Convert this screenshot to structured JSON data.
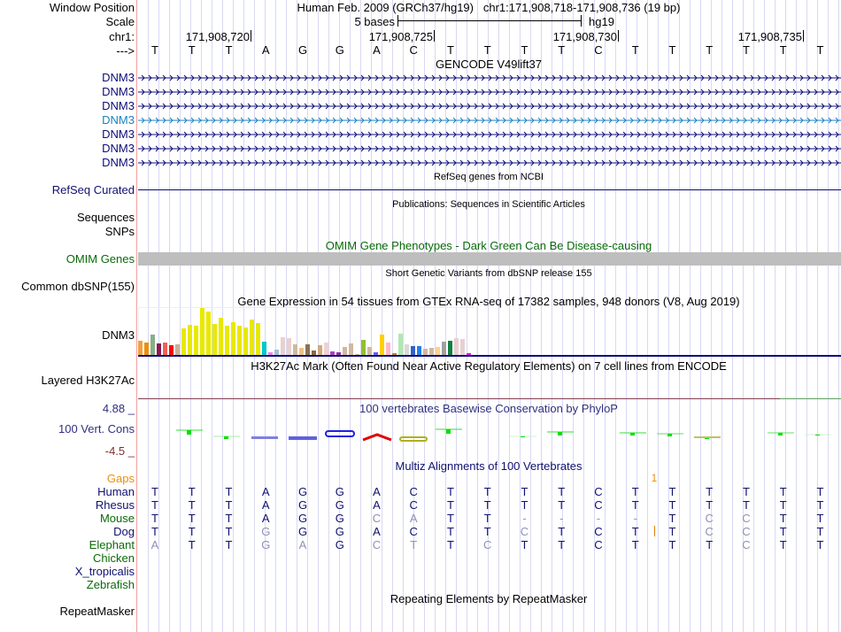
{
  "labels": {
    "window_position": "Window Position",
    "scale": "Scale",
    "chrom": "chr1:",
    "strand": "--->",
    "refseq": "RefSeq Curated",
    "sequences": "Sequences",
    "snps": "SNPs",
    "omim": "OMIM Genes",
    "dbsnp": "Common dbSNP(155)",
    "gtex_gene": "DNM3",
    "h3k27ac": "Layered H3K27Ac",
    "cons_max": "4.88 _",
    "cons_name": "100 Vert. Cons",
    "cons_min": "-4.5 _",
    "gaps": "Gaps",
    "repeatmasker": "RepeatMasker"
  },
  "header": {
    "assembly": "Human Feb. 2009 (GRCh37/hg19)",
    "position": "chr1:171,908,718-171,908,736 (19 bp)",
    "scale_label": "5 bases",
    "scale_db": "hg19",
    "ticks": [
      "171,908,720",
      "171,908,725",
      "171,908,730",
      "171,908,735"
    ]
  },
  "sequence": [
    "T",
    "T",
    "T",
    "A",
    "G",
    "G",
    "A",
    "C",
    "T",
    "T",
    "T",
    "T",
    "C",
    "T",
    "T",
    "T",
    "T",
    "T",
    "T"
  ],
  "gencode": {
    "title": "GENCODE V49lift37",
    "transcripts": [
      "DNM3",
      "DNM3",
      "DNM3",
      "DNM3",
      "DNM3",
      "DNM3",
      "DNM3"
    ],
    "colors": [
      "#0c0c78",
      "#0c0c78",
      "#0c0c78",
      "#1a82c0",
      "#0c0c78",
      "#0c0c78",
      "#0c0c78"
    ]
  },
  "tracks": {
    "refseq_title": "RefSeq genes from NCBI",
    "publications_title": "Publications: Sequences in Scientific Articles",
    "omim_title": "OMIM Gene Phenotypes - Dark Green Can Be Disease-causing",
    "dbsnp_title": "Short Genetic Variants from dbSNP release 155",
    "gtex_title": "Gene Expression in 54 tissues from GTEx RNA-seq of 17382 samples, 948 donors (V8, Aug 2019)",
    "h3k27ac_title": "H3K27Ac Mark (Often Found Near Active Regulatory Elements) on 7 cell lines from ENCODE",
    "cons_title": "100 vertebrates Basewise Conservation by PhyloP",
    "multiz_title": "Multiz Alignments of 100 Vertebrates",
    "repeat_title": "Repeating Elements by RepeatMasker"
  },
  "gtex": {
    "values": [
      16,
      14,
      23,
      13,
      14,
      11,
      12,
      30,
      34,
      33,
      53,
      49,
      35,
      42,
      33,
      37,
      33,
      31,
      40,
      36,
      15,
      3,
      6,
      20,
      19,
      12,
      8,
      12,
      5,
      11,
      14,
      4,
      3,
      9,
      13,
      1,
      17,
      9,
      3,
      23,
      14,
      2,
      24,
      12,
      10,
      10,
      7,
      8,
      9,
      15,
      16,
      19,
      18,
      2
    ],
    "colors": [
      "#f0a040",
      "#e89010",
      "#88b088",
      "#8a1a50",
      "#f06050",
      "#ff0000",
      "#c8b098",
      "#e8e800",
      "#e8e800",
      "#e8e800",
      "#e8e800",
      "#e8e800",
      "#e8e800",
      "#e8e800",
      "#e8e800",
      "#e8e800",
      "#e8e800",
      "#e8e800",
      "#e8e800",
      "#e8e800",
      "#00c8c8",
      "#ee82ee",
      "#a0c0d0",
      "#e8d0d0",
      "#e8d0d0",
      "#d0b8a0",
      "#f0c080",
      "#8c7050",
      "#886644",
      "#d0a880",
      "#f0d0d0",
      "#b040c0",
      "#9030a0",
      "#d0b8a0",
      "#d0b8a0",
      "#d0b8a0",
      "#90c030",
      "#d0b8a0",
      "#6060f0",
      "#ffd000",
      "#ffb8c8",
      "#b08830",
      "#b0e8b0",
      "#d8d8d8",
      "#3060d0",
      "#2080f0",
      "#d0b8a0",
      "#d0b8a0",
      "#ffd090",
      "#a0a0a0",
      "#108040",
      "#e8d0d0",
      "#e8d0d0",
      "#f000f0"
    ]
  },
  "gaps": {
    "marker": "1"
  },
  "multiz": {
    "species": [
      {
        "name": "Human",
        "color": "#101070",
        "seq": [
          "T",
          "T",
          "T",
          "A",
          "G",
          "G",
          "A",
          "C",
          "T",
          "T",
          "T",
          "T",
          "C",
          "T",
          "T",
          "T",
          "T",
          "T",
          "T"
        ]
      },
      {
        "name": "Rhesus",
        "color": "#101070",
        "seq": [
          "T",
          "T",
          "T",
          "A",
          "G",
          "G",
          "A",
          "C",
          "T",
          "T",
          "T",
          "T",
          "C",
          "T",
          "T",
          "T",
          "T",
          "T",
          "T"
        ]
      },
      {
        "name": "Mouse",
        "color": "#0a6a0a",
        "seq": [
          "T",
          "T",
          "T",
          "A",
          "G",
          "G",
          "C",
          "A",
          "T",
          "T",
          "-",
          "-",
          "-",
          "-",
          "T",
          "C",
          "C",
          "T",
          "T"
        ]
      },
      {
        "name": "Dog",
        "color": "#101070",
        "seq": [
          "T",
          "T",
          "T",
          "G",
          "G",
          "G",
          "A",
          "C",
          "T",
          "T",
          "C",
          "T",
          "C",
          "T",
          "T",
          "C",
          "C",
          "T",
          "T"
        ]
      },
      {
        "name": "Elephant",
        "color": "#0a6a0a",
        "seq": [
          "A",
          "T",
          "T",
          "G",
          "A",
          "G",
          "C",
          "T",
          "T",
          "C",
          "T",
          "T",
          "C",
          "T",
          "T",
          "T",
          "C",
          "T",
          "T"
        ]
      },
      {
        "name": "Chicken",
        "color": "#0a6a0a",
        "seq": []
      },
      {
        "name": "X_tropicalis",
        "color": "#101070",
        "seq": []
      },
      {
        "name": "Zebrafish",
        "color": "#0a6a0a",
        "seq": []
      }
    ],
    "match_color": "#101070",
    "mismatch_color": "#9090b8"
  }
}
